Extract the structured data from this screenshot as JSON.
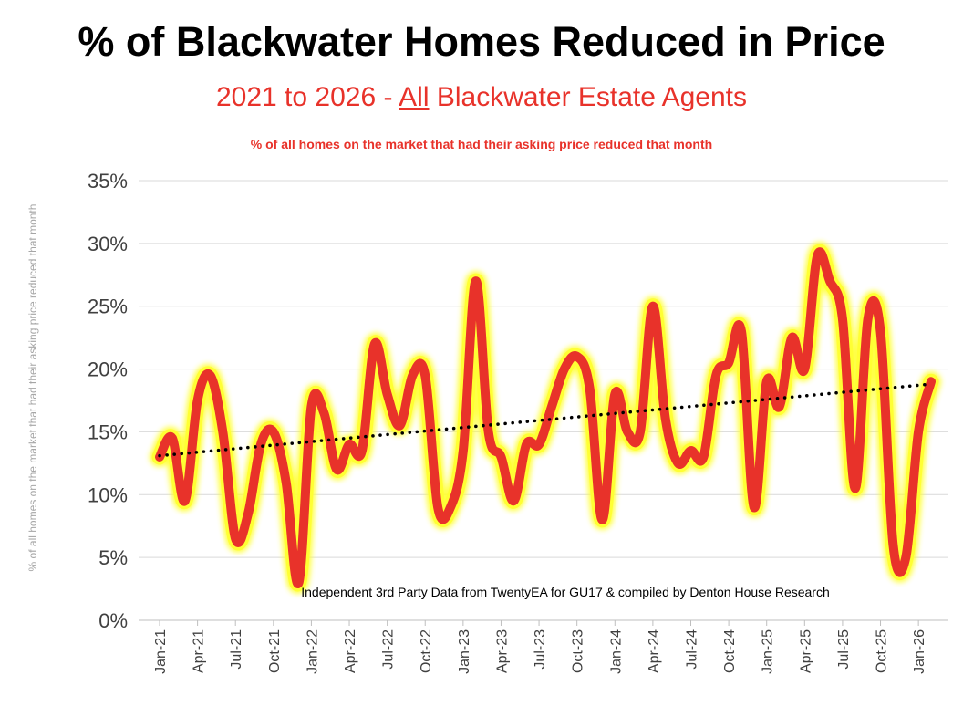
{
  "chart_data": {
    "type": "line",
    "title": "% of Blackwater Homes Reduced in Price",
    "subtitle_pre": "2021 to 2026 - ",
    "subtitle_underlined": "All",
    "subtitle_post": " Blackwater Estate Agents",
    "caption": "% of all homes on the market that had their asking price reduced that month",
    "ylabel": "% of all homes on the market that had their asking price reduced that month",
    "source_note": "Independent 3rd Party Data from TwentyEA for GU17 & compiled by Denton House Research",
    "ylim": [
      0,
      35
    ],
    "yticks": [
      "0%",
      "5%",
      "10%",
      "15%",
      "20%",
      "25%",
      "30%",
      "35%"
    ],
    "xtick_labels": [
      "Jan-21",
      "Apr-21",
      "Jul-21",
      "Oct-21",
      "Jan-22",
      "Apr-22",
      "Jul-22",
      "Oct-22",
      "Jan-23",
      "Apr-23",
      "Jul-23",
      "Oct-23",
      "Jan-24",
      "Apr-24",
      "Jul-24",
      "Oct-24",
      "Jan-25",
      "Apr-25",
      "Jul-25",
      "Oct-25",
      "Jan-26"
    ],
    "grid": true,
    "series": [
      {
        "name": "% reduced",
        "color": "#e8322a",
        "glow_color": "#ffff33",
        "values": [
          13,
          14.5,
          9.5,
          17.5,
          19.5,
          15,
          6.5,
          8.5,
          14,
          15,
          11,
          3,
          17,
          16.5,
          12,
          14,
          13.5,
          22,
          18,
          15.5,
          19.5,
          19.5,
          9,
          9,
          13.5,
          27,
          15,
          13,
          9.5,
          14,
          14,
          17,
          20,
          21,
          18.5,
          8,
          18,
          15,
          15,
          25,
          16,
          12.5,
          13.5,
          13,
          19.5,
          20.5,
          23,
          9,
          19,
          17,
          22.5,
          20,
          29,
          27,
          24,
          10.5,
          24,
          23,
          6,
          5,
          15,
          19
        ]
      }
    ],
    "trendline": {
      "style": "dotted",
      "color": "#000000",
      "start": 13.1,
      "end": 18.8
    }
  }
}
